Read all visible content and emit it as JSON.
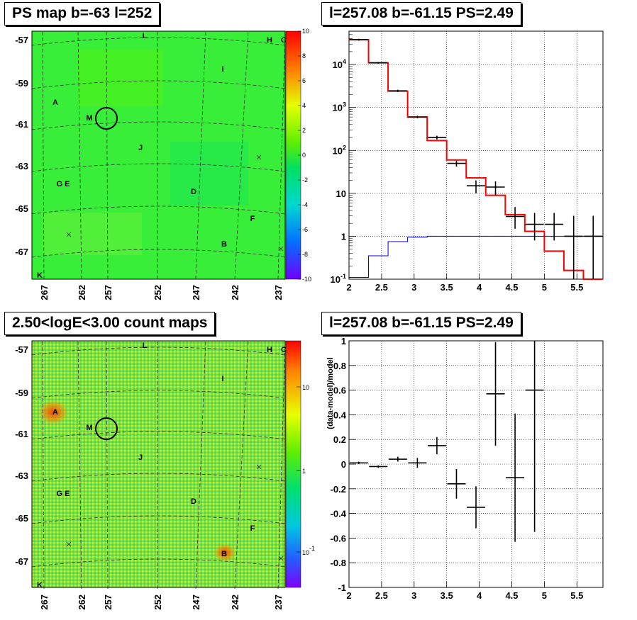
{
  "panels": {
    "top_left_title": "PS map b=-63 l=252",
    "top_right_title": "l=257.08 b=-61.15 PS=2.49",
    "bottom_left_title": "2.50<logE<3.00 count maps",
    "bottom_right_title": "l=257.08 b=-61.15 PS=2.49"
  },
  "colors": {
    "map_fill": "#38ee38",
    "model_line": "#ff0000",
    "background_line": "#0000cc",
    "data": "#000000"
  },
  "chart_data": [
    {
      "type": "heatmap",
      "title": "PS map b=-63 l=252",
      "x_ticks": [
        "267",
        "262",
        "257",
        "252",
        "247",
        "242",
        "237"
      ],
      "y_ticks": [
        "-57",
        "-59",
        "-61",
        "-63",
        "-65",
        "-67"
      ],
      "colorbar": {
        "scale": "linear",
        "min": -10,
        "max": 10,
        "ticks": [
          "10",
          "8",
          "6",
          "4",
          "2",
          "0",
          "-2",
          "-4",
          "-6",
          "-8",
          "-10"
        ]
      },
      "source_labels": [
        "L",
        "H",
        "C",
        "I",
        "A",
        "M",
        "J",
        "G E",
        "D",
        "F",
        "B",
        "K"
      ]
    },
    {
      "type": "line",
      "title": "l=257.08 b=-61.15 PS=2.49",
      "xlabel": "",
      "ylabel": "",
      "y_scale": "log",
      "xlim": [
        2,
        5.9
      ],
      "ylim": [
        0.1,
        60000
      ],
      "x_ticks": [
        "2",
        "2.5",
        "3",
        "3.5",
        "4",
        "4.5",
        "5",
        "5.5"
      ],
      "y_ticks": [
        "10^-1",
        "1",
        "10",
        "10^2",
        "10^3",
        "10^4"
      ],
      "series": [
        {
          "style": "step",
          "color": "#ff0000",
          "bin_edges": [
            2.0,
            2.3,
            2.6,
            2.9,
            3.2,
            3.5,
            3.8,
            4.1,
            4.4,
            4.7,
            5.0,
            5.3,
            5.6,
            5.9
          ],
          "values": [
            38000,
            11000,
            2400,
            600,
            170,
            60,
            23,
            9,
            3.2,
            1.3,
            0.45,
            0.16,
            0.06
          ]
        },
        {
          "style": "step",
          "color": "#0000cc",
          "bin_edges": [
            2.0,
            2.3,
            2.6,
            2.9,
            3.2,
            3.5,
            3.8,
            4.1,
            4.4,
            4.7,
            5.0,
            5.3,
            5.6,
            5.9
          ],
          "values": [
            0.11,
            0.35,
            0.75,
            0.95,
            1.0,
            1.0,
            1.0,
            1.0,
            1.0,
            1.0,
            1.0,
            1.0,
            1.0
          ]
        },
        {
          "style": "points",
          "color": "#000000",
          "x": [
            2.15,
            2.45,
            2.75,
            3.05,
            3.35,
            3.65,
            3.95,
            4.25,
            4.55,
            4.85,
            5.15,
            5.45,
            5.75
          ],
          "y": [
            38000,
            11000,
            2450,
            600,
            200,
            50,
            15,
            14,
            2.9,
            1.9,
            1.9,
            1.0,
            1.0
          ],
          "y_lo": [
            36000,
            10500,
            2300,
            560,
            180,
            42,
            10,
            9,
            1.5,
            0.8,
            0.8,
            0.1,
            0.1
          ],
          "y_hi": [
            40000,
            11500,
            2600,
            640,
            220,
            58,
            20,
            19,
            4.8,
            3.5,
            3.5,
            3.0,
            3.0
          ]
        }
      ]
    },
    {
      "type": "heatmap",
      "title": "2.50<logE<3.00 count maps",
      "x_ticks": [
        "267",
        "262",
        "257",
        "252",
        "247",
        "242",
        "237"
      ],
      "y_ticks": [
        "-57",
        "-59",
        "-61",
        "-63",
        "-65",
        "-67"
      ],
      "colorbar": {
        "scale": "log",
        "ticks": [
          "10",
          "1",
          "10^-1"
        ]
      },
      "source_labels": [
        "L",
        "H",
        "C",
        "I",
        "A",
        "M",
        "J",
        "G E",
        "D",
        "F",
        "B",
        "K"
      ]
    },
    {
      "type": "scatter",
      "title": "l=257.08 b=-61.15 PS=2.49",
      "xlabel": "",
      "ylabel": "(data-model)/model",
      "xlim": [
        2,
        5.9
      ],
      "ylim": [
        -1,
        1
      ],
      "x_ticks": [
        "2",
        "2.5",
        "3",
        "3.5",
        "4",
        "4.5",
        "5",
        "5.5"
      ],
      "y_ticks": [
        "-1",
        "-0.8",
        "-0.6",
        "-0.4",
        "-0.2",
        "0",
        "0.2",
        "0.4",
        "0.6",
        "0.8",
        "1"
      ],
      "x": [
        2.15,
        2.45,
        2.75,
        3.05,
        3.35,
        3.65,
        3.95,
        4.25,
        4.55,
        4.85
      ],
      "y": [
        0.01,
        -0.02,
        0.04,
        0.01,
        0.15,
        -0.16,
        -0.35,
        0.57,
        -0.11,
        0.6
      ],
      "y_err": [
        0.01,
        0.01,
        0.02,
        0.04,
        0.07,
        0.12,
        0.17,
        0.42,
        0.52,
        1.15
      ]
    }
  ]
}
